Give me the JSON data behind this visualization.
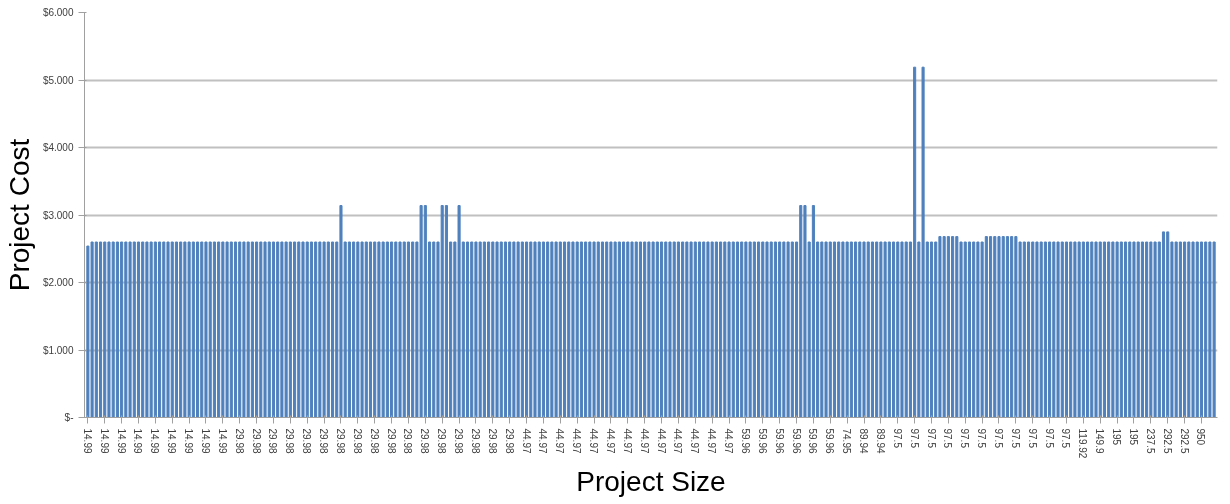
{
  "chart_data": {
    "type": "bar",
    "xlabel": "Project Size",
    "ylabel": "Project Cost",
    "color": "#4f81bd",
    "categories": [
      "14.99",
      null,
      null,
      null,
      "14.99",
      null,
      null,
      null,
      "14.99",
      null,
      null,
      null,
      "14.99",
      null,
      null,
      null,
      "14.99",
      null,
      null,
      null,
      "14.99",
      null,
      null,
      null,
      "14.99",
      null,
      null,
      null,
      "14.99",
      null,
      null,
      null,
      "14.99",
      null,
      null,
      null,
      "29.98",
      null,
      null,
      null,
      "29.98",
      null,
      null,
      null,
      "29.98",
      null,
      null,
      null,
      "29.98",
      null,
      null,
      null,
      "29.98",
      null,
      null,
      null,
      "29.98",
      null,
      null,
      null,
      "29.98",
      null,
      null,
      null,
      "29.98",
      null,
      null,
      null,
      "29.98",
      null,
      null,
      null,
      "29.98",
      null,
      null,
      null,
      "29.98",
      null,
      null,
      null,
      "29.98",
      null,
      null,
      null,
      "29.98",
      null,
      null,
      null,
      "29.98",
      null,
      null,
      null,
      "29.98",
      null,
      null,
      null,
      "29.98",
      null,
      null,
      null,
      "29.98",
      null,
      null,
      null,
      "44.97",
      null,
      null,
      null,
      "44.97",
      null,
      null,
      null,
      "44.97",
      null,
      null,
      null,
      "44.97",
      null,
      null,
      null,
      "44.97",
      null,
      null,
      null,
      "44.97",
      null,
      null,
      null,
      "44.97",
      null,
      null,
      null,
      "44.97",
      null,
      null,
      null,
      "44.97",
      null,
      null,
      null,
      "44.97",
      null,
      null,
      null,
      "44.97",
      null,
      null,
      null,
      "44.97",
      null,
      null,
      null,
      "44.97",
      null,
      null,
      null,
      "59.96",
      null,
      null,
      null,
      "59.96",
      null,
      null,
      null,
      "59.96",
      null,
      null,
      null,
      "59.96",
      null,
      null,
      null,
      "59.96",
      null,
      null,
      null,
      "59.96",
      null,
      null,
      null,
      "74.95",
      null,
      null,
      null,
      "89.94",
      null,
      null,
      null,
      "89.94",
      null,
      null,
      null,
      "97.5",
      null,
      null,
      null,
      "97.5",
      null,
      null,
      null,
      "97.5",
      null,
      null,
      null,
      "97.5",
      null,
      null,
      null,
      "97.5",
      null,
      null,
      null,
      "97.5",
      null,
      null,
      null,
      "97.5",
      null,
      null,
      null,
      "97.5",
      null,
      null,
      null,
      "97.5",
      null,
      null,
      null,
      "97.5",
      null,
      null,
      null,
      "97.5",
      null,
      null,
      null,
      "119.92",
      null,
      null,
      null,
      "149.9",
      null,
      null,
      null,
      "195",
      null,
      null,
      null,
      "195",
      null,
      null,
      null,
      "237.5",
      null,
      null,
      null,
      "292.5",
      null,
      null,
      null,
      "292.5",
      null,
      null,
      null,
      "950",
      null,
      null,
      null
    ],
    "values": [
      2.54,
      2.6,
      2.6,
      2.6,
      2.6,
      2.6,
      2.6,
      2.6,
      2.6,
      2.6,
      2.6,
      2.6,
      2.6,
      2.6,
      2.6,
      2.6,
      2.6,
      2.6,
      2.6,
      2.6,
      2.6,
      2.6,
      2.6,
      2.6,
      2.6,
      2.6,
      2.6,
      2.6,
      2.6,
      2.6,
      2.6,
      2.6,
      2.6,
      2.6,
      2.6,
      2.6,
      2.6,
      2.6,
      2.6,
      2.6,
      2.6,
      2.6,
      2.6,
      2.6,
      2.6,
      2.6,
      2.6,
      2.6,
      2.6,
      2.6,
      2.6,
      2.6,
      2.6,
      2.6,
      2.6,
      2.6,
      2.6,
      2.6,
      2.6,
      2.6,
      3.14,
      2.6,
      2.6,
      2.6,
      2.6,
      2.6,
      2.6,
      2.6,
      2.6,
      2.6,
      2.6,
      2.6,
      2.6,
      2.6,
      2.6,
      2.6,
      2.6,
      2.6,
      2.6,
      3.14,
      3.14,
      2.6,
      2.6,
      2.6,
      3.14,
      3.14,
      2.6,
      2.6,
      3.14,
      2.6,
      2.6,
      2.6,
      2.6,
      2.6,
      2.6,
      2.6,
      2.6,
      2.6,
      2.6,
      2.6,
      2.6,
      2.6,
      2.6,
      2.6,
      2.6,
      2.6,
      2.6,
      2.6,
      2.6,
      2.6,
      2.6,
      2.6,
      2.6,
      2.6,
      2.6,
      2.6,
      2.6,
      2.6,
      2.6,
      2.6,
      2.6,
      2.6,
      2.6,
      2.6,
      2.6,
      2.6,
      2.6,
      2.6,
      2.6,
      2.6,
      2.6,
      2.6,
      2.6,
      2.6,
      2.6,
      2.6,
      2.6,
      2.6,
      2.6,
      2.6,
      2.6,
      2.6,
      2.6,
      2.6,
      2.6,
      2.6,
      2.6,
      2.6,
      2.6,
      2.6,
      2.6,
      2.6,
      2.6,
      2.6,
      2.6,
      2.6,
      2.6,
      2.6,
      2.6,
      2.6,
      2.6,
      2.6,
      2.6,
      2.6,
      2.6,
      2.6,
      2.6,
      2.6,
      2.6,
      3.14,
      3.14,
      2.6,
      3.14,
      2.6,
      2.6,
      2.6,
      2.6,
      2.6,
      2.6,
      2.6,
      2.6,
      2.6,
      2.6,
      2.6,
      2.6,
      2.6,
      2.6,
      2.6,
      2.6,
      2.6,
      2.6,
      2.6,
      2.6,
      2.6,
      2.6,
      2.6,
      5.19,
      2.6,
      5.19,
      2.6,
      2.6,
      2.6,
      2.68,
      2.68,
      2.68,
      2.68,
      2.68,
      2.6,
      2.6,
      2.6,
      2.6,
      2.6,
      2.6,
      2.68,
      2.68,
      2.68,
      2.68,
      2.68,
      2.68,
      2.68,
      2.68,
      2.6,
      2.6,
      2.6,
      2.6,
      2.6,
      2.6,
      2.6,
      2.6,
      2.6,
      2.6,
      2.6,
      2.6,
      2.6,
      2.6,
      2.6,
      2.6,
      2.6,
      2.6,
      2.6,
      2.6,
      2.6,
      2.6,
      2.6,
      2.6,
      2.6,
      2.6,
      2.6,
      2.6,
      2.6,
      2.6,
      2.6,
      2.6,
      2.6,
      2.6,
      2.75,
      2.75,
      2.6,
      2.6,
      2.6,
      2.6,
      2.6,
      2.6,
      2.6,
      2.6,
      2.6,
      2.6,
      2.6
    ],
    "ylim": [
      0,
      6
    ],
    "yticks": [
      {
        "value": 0,
        "label": "$-"
      },
      {
        "value": 1,
        "label": "$1.000"
      },
      {
        "value": 2,
        "label": "$2.000"
      },
      {
        "value": 3,
        "label": "$3.000"
      },
      {
        "value": 4,
        "label": "$4.000"
      },
      {
        "value": 5,
        "label": "$5.000"
      },
      {
        "value": 6,
        "label": "$6.000"
      }
    ],
    "grid": "y"
  }
}
